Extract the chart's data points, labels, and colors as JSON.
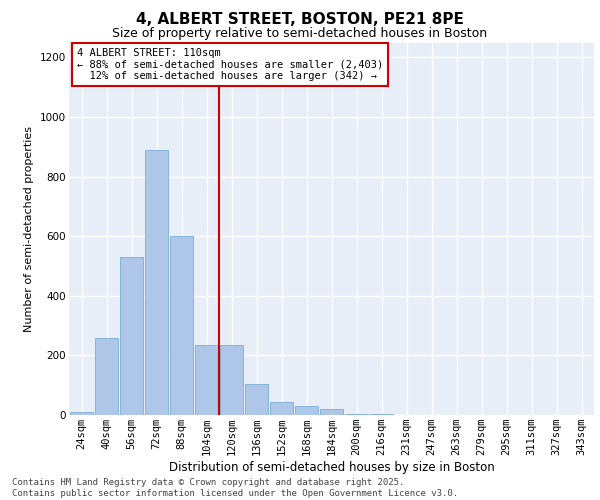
{
  "title": "4, ALBERT STREET, BOSTON, PE21 8PE",
  "subtitle": "Size of property relative to semi-detached houses in Boston",
  "xlabel": "Distribution of semi-detached houses by size in Boston",
  "ylabel": "Number of semi-detached properties",
  "categories": [
    "24sqm",
    "40sqm",
    "56sqm",
    "72sqm",
    "88sqm",
    "104sqm",
    "120sqm",
    "136sqm",
    "152sqm",
    "168sqm",
    "184sqm",
    "200sqm",
    "216sqm",
    "231sqm",
    "247sqm",
    "263sqm",
    "279sqm",
    "295sqm",
    "311sqm",
    "327sqm",
    "343sqm"
  ],
  "values": [
    10,
    260,
    530,
    890,
    600,
    235,
    235,
    105,
    45,
    30,
    20,
    5,
    2,
    1,
    1,
    0,
    0,
    0,
    0,
    1,
    0
  ],
  "bar_color": "#aec6e8",
  "bar_edge_color": "#7aadd4",
  "background_color": "#e8eef7",
  "grid_color": "#ffffff",
  "vline_color": "#cc0000",
  "annotation_line1": "4 ALBERT STREET: 110sqm",
  "annotation_line2": "← 88% of semi-detached houses are smaller (2,403)",
  "annotation_line3": "  12% of semi-detached houses are larger (342) →",
  "annotation_box_color": "#ffffff",
  "annotation_box_edge": "#cc0000",
  "footer_line1": "Contains HM Land Registry data © Crown copyright and database right 2025.",
  "footer_line2": "Contains public sector information licensed under the Open Government Licence v3.0.",
  "ylim": [
    0,
    1250
  ],
  "yticks": [
    0,
    200,
    400,
    600,
    800,
    1000,
    1200
  ],
  "title_fontsize": 11,
  "subtitle_fontsize": 9,
  "xlabel_fontsize": 8.5,
  "ylabel_fontsize": 8,
  "tick_fontsize": 7.5,
  "footer_fontsize": 6.5,
  "annot_fontsize": 7.5
}
